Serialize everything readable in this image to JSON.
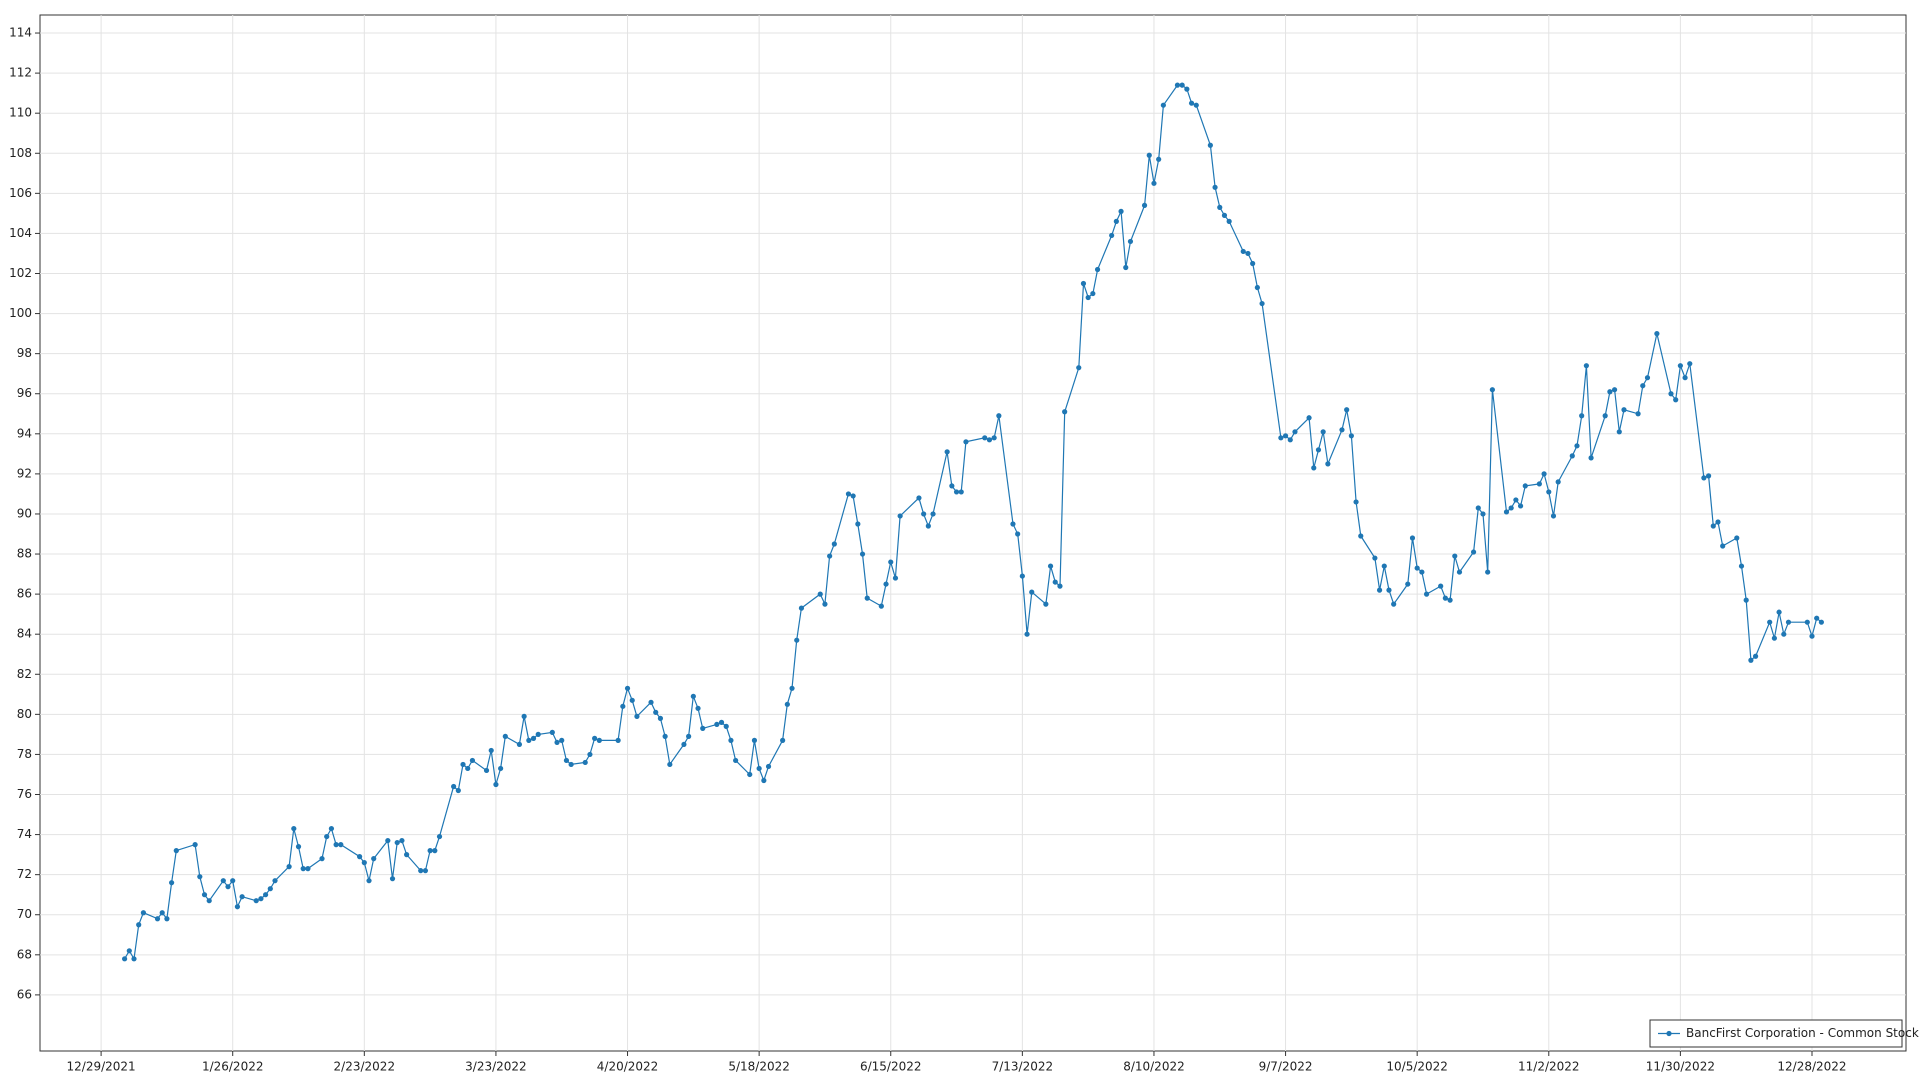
{
  "chart_data": {
    "type": "line",
    "x": [
      "1/3/2022",
      "1/4/2022",
      "1/5/2022",
      "1/6/2022",
      "1/7/2022",
      "1/10/2022",
      "1/11/2022",
      "1/12/2022",
      "1/13/2022",
      "1/14/2022",
      "1/18/2022",
      "1/19/2022",
      "1/20/2022",
      "1/21/2022",
      "1/24/2022",
      "1/25/2022",
      "1/26/2022",
      "1/27/2022",
      "1/28/2022",
      "1/31/2022",
      "2/1/2022",
      "2/2/2022",
      "2/3/2022",
      "2/4/2022",
      "2/7/2022",
      "2/8/2022",
      "2/9/2022",
      "2/10/2022",
      "2/11/2022",
      "2/14/2022",
      "2/15/2022",
      "2/16/2022",
      "2/17/2022",
      "2/18/2022",
      "2/22/2022",
      "2/23/2022",
      "2/24/2022",
      "2/25/2022",
      "2/28/2022",
      "3/1/2022",
      "3/2/2022",
      "3/3/2022",
      "3/4/2022",
      "3/7/2022",
      "3/8/2022",
      "3/9/2022",
      "3/10/2022",
      "3/11/2022",
      "3/14/2022",
      "3/15/2022",
      "3/16/2022",
      "3/17/2022",
      "3/18/2022",
      "3/21/2022",
      "3/22/2022",
      "3/23/2022",
      "3/24/2022",
      "3/25/2022",
      "3/28/2022",
      "3/29/2022",
      "3/30/2022",
      "3/31/2022",
      "4/1/2022",
      "4/4/2022",
      "4/5/2022",
      "4/6/2022",
      "4/7/2022",
      "4/8/2022",
      "4/11/2022",
      "4/12/2022",
      "4/13/2022",
      "4/14/2022",
      "4/18/2022",
      "4/19/2022",
      "4/20/2022",
      "4/21/2022",
      "4/22/2022",
      "4/25/2022",
      "4/26/2022",
      "4/27/2022",
      "4/28/2022",
      "4/29/2022",
      "5/2/2022",
      "5/3/2022",
      "5/4/2022",
      "5/5/2022",
      "5/6/2022",
      "5/9/2022",
      "5/10/2022",
      "5/11/2022",
      "5/12/2022",
      "5/13/2022",
      "5/16/2022",
      "5/17/2022",
      "5/18/2022",
      "5/19/2022",
      "5/20/2022",
      "5/23/2022",
      "5/24/2022",
      "5/25/2022",
      "5/26/2022",
      "5/27/2022",
      "5/31/2022",
      "6/1/2022",
      "6/2/2022",
      "6/3/2022",
      "6/6/2022",
      "6/7/2022",
      "6/8/2022",
      "6/9/2022",
      "6/10/2022",
      "6/13/2022",
      "6/14/2022",
      "6/15/2022",
      "6/16/2022",
      "6/17/2022",
      "6/21/2022",
      "6/22/2022",
      "6/23/2022",
      "6/24/2022",
      "6/27/2022",
      "6/28/2022",
      "6/29/2022",
      "6/30/2022",
      "7/1/2022",
      "7/5/2022",
      "7/6/2022",
      "7/7/2022",
      "7/8/2022",
      "7/11/2022",
      "7/12/2022",
      "7/13/2022",
      "7/14/2022",
      "7/15/2022",
      "7/18/2022",
      "7/19/2022",
      "7/20/2022",
      "7/21/2022",
      "7/22/2022",
      "7/25/2022",
      "7/26/2022",
      "7/27/2022",
      "7/28/2022",
      "7/29/2022",
      "8/1/2022",
      "8/2/2022",
      "8/3/2022",
      "8/4/2022",
      "8/5/2022",
      "8/8/2022",
      "8/9/2022",
      "8/10/2022",
      "8/11/2022",
      "8/12/2022",
      "8/15/2022",
      "8/16/2022",
      "8/17/2022",
      "8/18/2022",
      "8/19/2022",
      "8/22/2022",
      "8/23/2022",
      "8/24/2022",
      "8/25/2022",
      "8/26/2022",
      "8/29/2022",
      "8/30/2022",
      "8/31/2022",
      "9/1/2022",
      "9/2/2022",
      "9/6/2022",
      "9/7/2022",
      "9/8/2022",
      "9/9/2022",
      "9/12/2022",
      "9/13/2022",
      "9/14/2022",
      "9/15/2022",
      "9/16/2022",
      "9/19/2022",
      "9/20/2022",
      "9/21/2022",
      "9/22/2022",
      "9/23/2022",
      "9/26/2022",
      "9/27/2022",
      "9/28/2022",
      "9/29/2022",
      "9/30/2022",
      "10/3/2022",
      "10/4/2022",
      "10/5/2022",
      "10/6/2022",
      "10/7/2022",
      "10/10/2022",
      "10/11/2022",
      "10/12/2022",
      "10/13/2022",
      "10/14/2022",
      "10/17/2022",
      "10/18/2022",
      "10/19/2022",
      "10/20/2022",
      "10/21/2022",
      "10/24/2022",
      "10/25/2022",
      "10/26/2022",
      "10/27/2022",
      "10/28/2022",
      "10/31/2022",
      "11/1/2022",
      "11/2/2022",
      "11/3/2022",
      "11/4/2022",
      "11/7/2022",
      "11/8/2022",
      "11/9/2022",
      "11/10/2022",
      "11/11/2022",
      "11/14/2022",
      "11/15/2022",
      "11/16/2022",
      "11/17/2022",
      "11/18/2022",
      "11/21/2022",
      "11/22/2022",
      "11/23/2022",
      "11/25/2022",
      "11/28/2022",
      "11/29/2022",
      "11/30/2022",
      "12/1/2022",
      "12/2/2022",
      "12/5/2022",
      "12/6/2022",
      "12/7/2022",
      "12/8/2022",
      "12/9/2022",
      "12/12/2022",
      "12/13/2022",
      "12/14/2022",
      "12/15/2022",
      "12/16/2022",
      "12/19/2022",
      "12/20/2022",
      "12/21/2022",
      "12/22/2022",
      "12/23/2022",
      "12/27/2022",
      "12/28/2022",
      "12/29/2022",
      "12/30/2022"
    ],
    "series": [
      {
        "name": "BancFirst Corporation - Common Stock",
        "color": "#1f77b4",
        "values": [
          67.8,
          68.2,
          67.8,
          69.5,
          70.1,
          69.8,
          70.1,
          69.8,
          71.6,
          73.2,
          73.5,
          71.9,
          71.0,
          70.7,
          71.7,
          71.4,
          71.7,
          70.4,
          70.9,
          70.7,
          70.8,
          71.0,
          71.3,
          71.7,
          72.4,
          74.3,
          73.4,
          72.3,
          72.3,
          72.8,
          73.9,
          74.3,
          73.5,
          73.5,
          72.9,
          72.6,
          71.7,
          72.8,
          73.7,
          71.8,
          73.6,
          73.7,
          73.0,
          72.2,
          72.2,
          73.2,
          73.2,
          73.9,
          76.4,
          76.2,
          77.5,
          77.3,
          77.7,
          77.2,
          78.2,
          76.5,
          77.3,
          78.9,
          78.5,
          79.9,
          78.7,
          78.8,
          79.0,
          79.1,
          78.6,
          78.7,
          77.7,
          77.5,
          77.6,
          78.0,
          78.8,
          78.7,
          78.7,
          80.4,
          81.3,
          80.7,
          79.9,
          80.6,
          80.1,
          79.8,
          78.9,
          77.5,
          78.5,
          78.9,
          80.9,
          80.3,
          79.3,
          79.5,
          79.6,
          79.4,
          78.7,
          77.7,
          77.0,
          78.7,
          77.3,
          76.7,
          77.4,
          78.7,
          80.5,
          81.3,
          83.7,
          85.3,
          86.0,
          85.5,
          87.9,
          88.5,
          91.0,
          90.9,
          89.5,
          88.0,
          85.8,
          85.4,
          86.5,
          87.6,
          86.8,
          89.9,
          90.8,
          90.0,
          89.4,
          90.0,
          93.1,
          91.4,
          91.1,
          91.1,
          93.6,
          93.8,
          93.7,
          93.8,
          94.9,
          89.5,
          89.0,
          86.9,
          84.0,
          86.1,
          85.5,
          87.4,
          86.6,
          86.4,
          95.1,
          97.3,
          101.5,
          100.8,
          101.0,
          102.2,
          103.9,
          104.6,
          105.1,
          102.3,
          103.6,
          105.4,
          107.9,
          106.5,
          107.7,
          110.4,
          111.4,
          111.4,
          111.2,
          110.5,
          110.4,
          108.4,
          106.3,
          105.3,
          104.9,
          104.6,
          103.1,
          103.0,
          102.5,
          101.3,
          100.5,
          93.8,
          93.9,
          93.7,
          94.1,
          94.8,
          92.3,
          93.2,
          94.1,
          92.5,
          94.2,
          95.2,
          93.9,
          90.6,
          88.9,
          87.8,
          86.2,
          87.4,
          86.2,
          85.5,
          86.5,
          88.8,
          87.3,
          87.1,
          86.0,
          86.4,
          85.8,
          85.7,
          87.9,
          87.1,
          88.1,
          90.3,
          90.0,
          87.1,
          96.2,
          90.1,
          90.3,
          90.7,
          90.4,
          91.4,
          91.5,
          92.0,
          91.1,
          89.9,
          91.6,
          92.9,
          93.4,
          94.9,
          97.4,
          92.8,
          94.9,
          96.1,
          96.2,
          94.1,
          95.2,
          95.0,
          96.4,
          96.8,
          99.0,
          96.0,
          95.7,
          97.4,
          96.8,
          97.5,
          91.8,
          91.9,
          89.4,
          89.6,
          88.4,
          88.8,
          87.4,
          85.7,
          82.7,
          82.9,
          84.6,
          83.8,
          85.1,
          84.0,
          84.6,
          84.6,
          83.9,
          84.8,
          84.6
        ]
      }
    ],
    "xlim": [
      "12/16/2021",
      "1/17/2023"
    ],
    "xticks": [
      "12/29/2021",
      "1/26/2022",
      "2/23/2022",
      "3/23/2022",
      "4/20/2022",
      "5/18/2022",
      "6/15/2022",
      "7/13/2022",
      "8/10/2022",
      "9/7/2022",
      "10/5/2022",
      "11/2/2022",
      "11/30/2022",
      "12/28/2022"
    ],
    "ylim": [
      63.2,
      114.9
    ],
    "yticks": [
      66,
      68,
      70,
      72,
      74,
      76,
      78,
      80,
      82,
      84,
      86,
      88,
      90,
      92,
      94,
      96,
      98,
      100,
      102,
      104,
      106,
      108,
      110,
      112,
      114
    ],
    "grid": true,
    "legend": "bottom-right"
  }
}
